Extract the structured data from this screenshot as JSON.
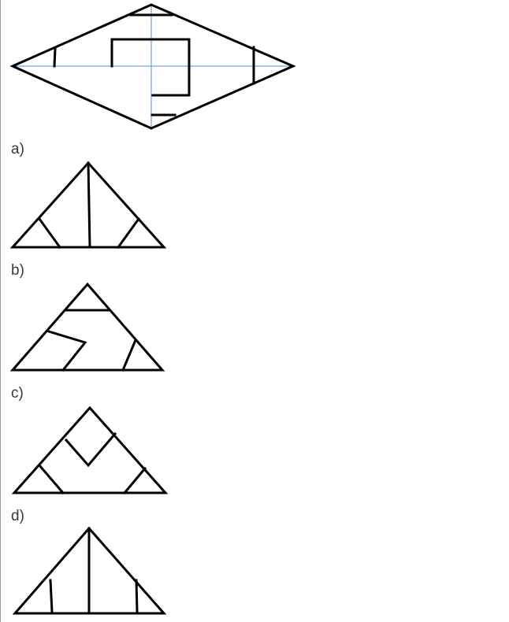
{
  "question_figure": {
    "description_icon": "rhombus-with-marks-icon",
    "stroke_color": "#000000",
    "guide_color": "#4a90d9"
  },
  "options": [
    {
      "key": "a",
      "label": "a)"
    },
    {
      "key": "b",
      "label": "b)"
    },
    {
      "key": "c",
      "label": "c)"
    },
    {
      "key": "d",
      "label": "d)"
    }
  ],
  "colors": {
    "label_text": "#3a3a3a",
    "border": "#9a9a9a"
  }
}
